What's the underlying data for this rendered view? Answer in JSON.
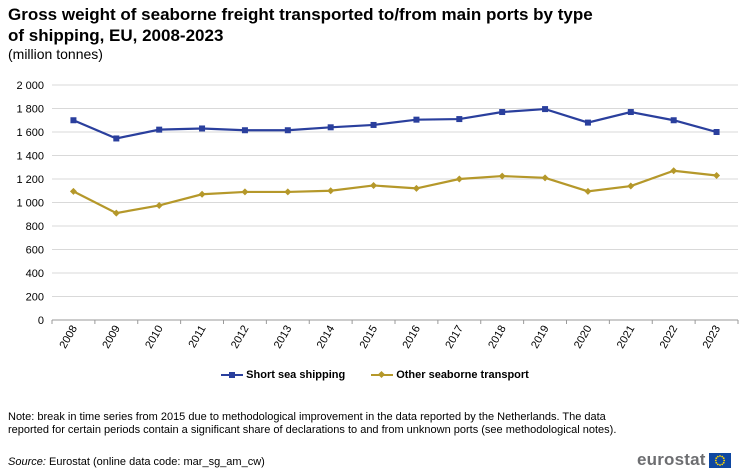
{
  "title": "Gross weight of seaborne freight transported to/from main ports by type of shipping, EU, 2008-2023",
  "subtitle": "(million tonnes)",
  "chart_data": {
    "type": "line",
    "categories": [
      "2008",
      "2009",
      "2010",
      "2011",
      "2012",
      "2013",
      "2014",
      "2015",
      "2016",
      "2017",
      "2018",
      "2019",
      "2020",
      "2021",
      "2022",
      "2023"
    ],
    "series": [
      {
        "name": "Short sea shipping",
        "color": "#2a3f9d",
        "marker": "square",
        "values": [
          1700,
          1545,
          1620,
          1630,
          1615,
          1615,
          1640,
          1660,
          1705,
          1710,
          1770,
          1795,
          1680,
          1770,
          1700,
          1600
        ]
      },
      {
        "name": "Other seaborne transport",
        "color": "#b5982a",
        "marker": "diamond",
        "values": [
          1095,
          910,
          975,
          1070,
          1090,
          1090,
          1100,
          1145,
          1120,
          1200,
          1225,
          1210,
          1095,
          1140,
          1270,
          1230
        ]
      }
    ],
    "yticks": [
      "0",
      "200",
      "400",
      "600",
      "800",
      "1 000",
      "1 200",
      "1 400",
      "1 600",
      "1 800",
      "2 000"
    ],
    "ylim": [
      0,
      2000
    ],
    "grid": true,
    "legend_position": "bottom-center"
  },
  "notes": "Note: break in time series from 2015 due to methodological improvement in the data reported by the Netherlands. The data reported for certain periods contain a significant share of declarations to and from unknown ports (see methodological notes).",
  "source_label": "Source:",
  "source_text": "Eurostat (online data code: mar_sg_am_cw)",
  "logo_text": "eurostat"
}
